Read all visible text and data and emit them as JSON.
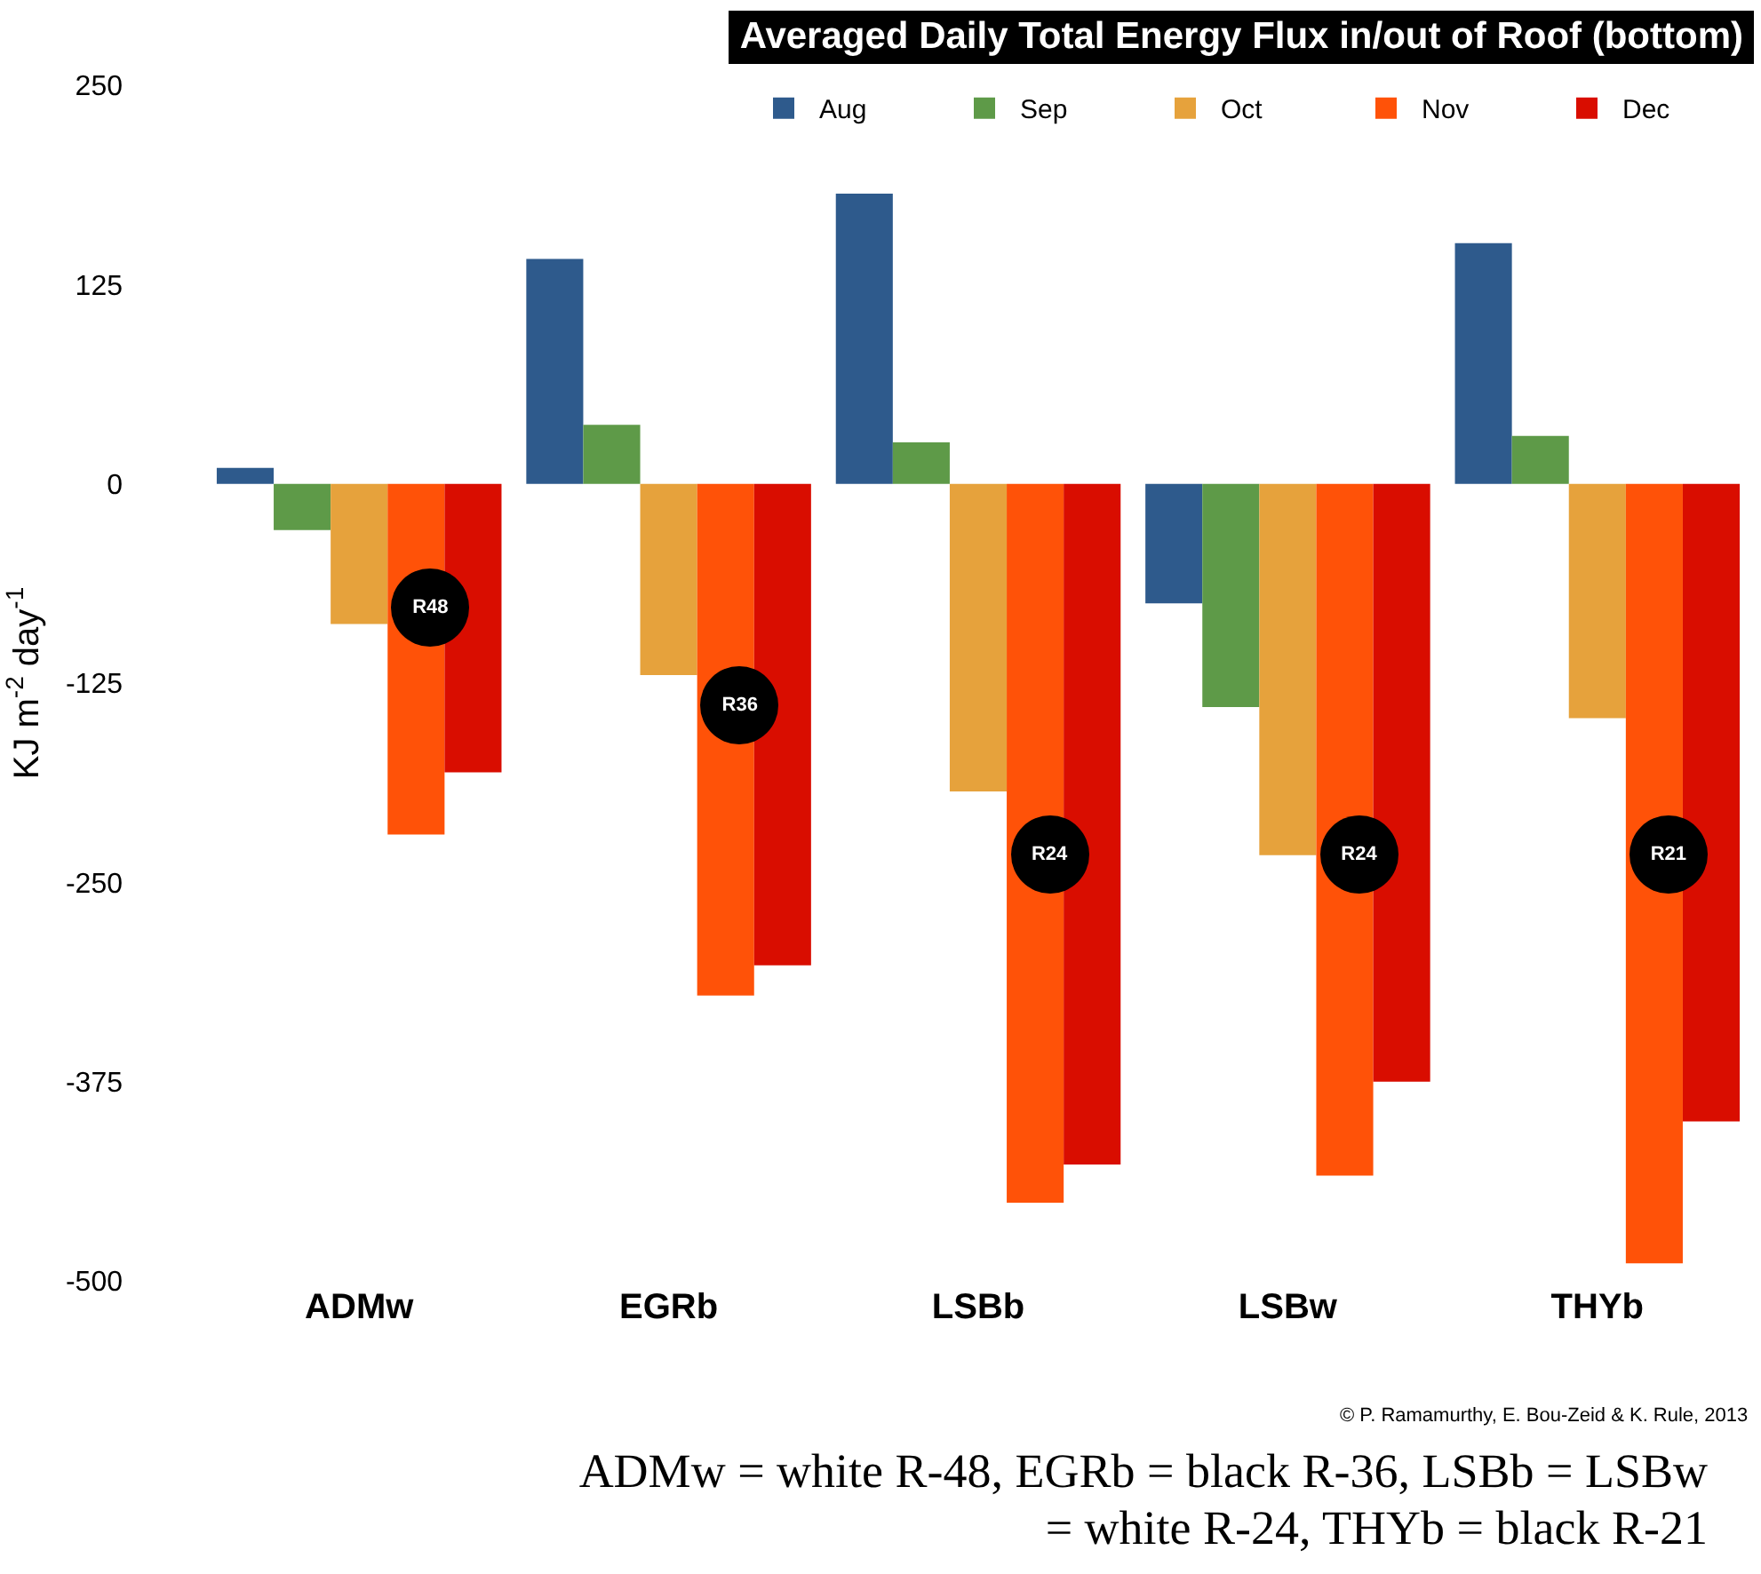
{
  "chart_data": {
    "type": "bar",
    "title": "Averaged Daily Total Energy Flux in/out of Roof (bottom)",
    "ylabel": "KJ m$^{-2}$ day$^{-1}$",
    "categories": [
      "ADMw",
      "EGRb",
      "LSBb",
      "LSBw",
      "THYb"
    ],
    "series": [
      {
        "name": "Aug",
        "color": "#2e5a8c",
        "values": [
          10,
          141,
          182,
          -75,
          151
        ]
      },
      {
        "name": "Sep",
        "color": "#5e9a48",
        "values": [
          -29,
          37,
          26,
          -140,
          30
        ]
      },
      {
        "name": "Oct",
        "color": "#e6a23c",
        "values": [
          -88,
          -120,
          -193,
          -233,
          -147
        ]
      },
      {
        "name": "Nov",
        "color": "#ff5208",
        "values": [
          -220,
          -321,
          -451,
          -434,
          -489
        ]
      },
      {
        "name": "Dec",
        "color": "#d90d00",
        "values": [
          -181,
          -302,
          -427,
          -375,
          -400
        ]
      }
    ],
    "ylim": [
      -500,
      250
    ],
    "yticks": [
      250,
      125,
      0,
      -125,
      -250,
      -375,
      -500
    ],
    "grid": false,
    "legend": "top right",
    "annotations": [
      "R48",
      "R36",
      "R24",
      "R24",
      "R21",
      "© P. Ramamurthy, E. Bou-Zeid & K. Rule, 2013",
      "ADMw = white R-48, EGRb = black R-36, LSBb = LSBw = white R-24, THYb = black R-21"
    ]
  }
}
